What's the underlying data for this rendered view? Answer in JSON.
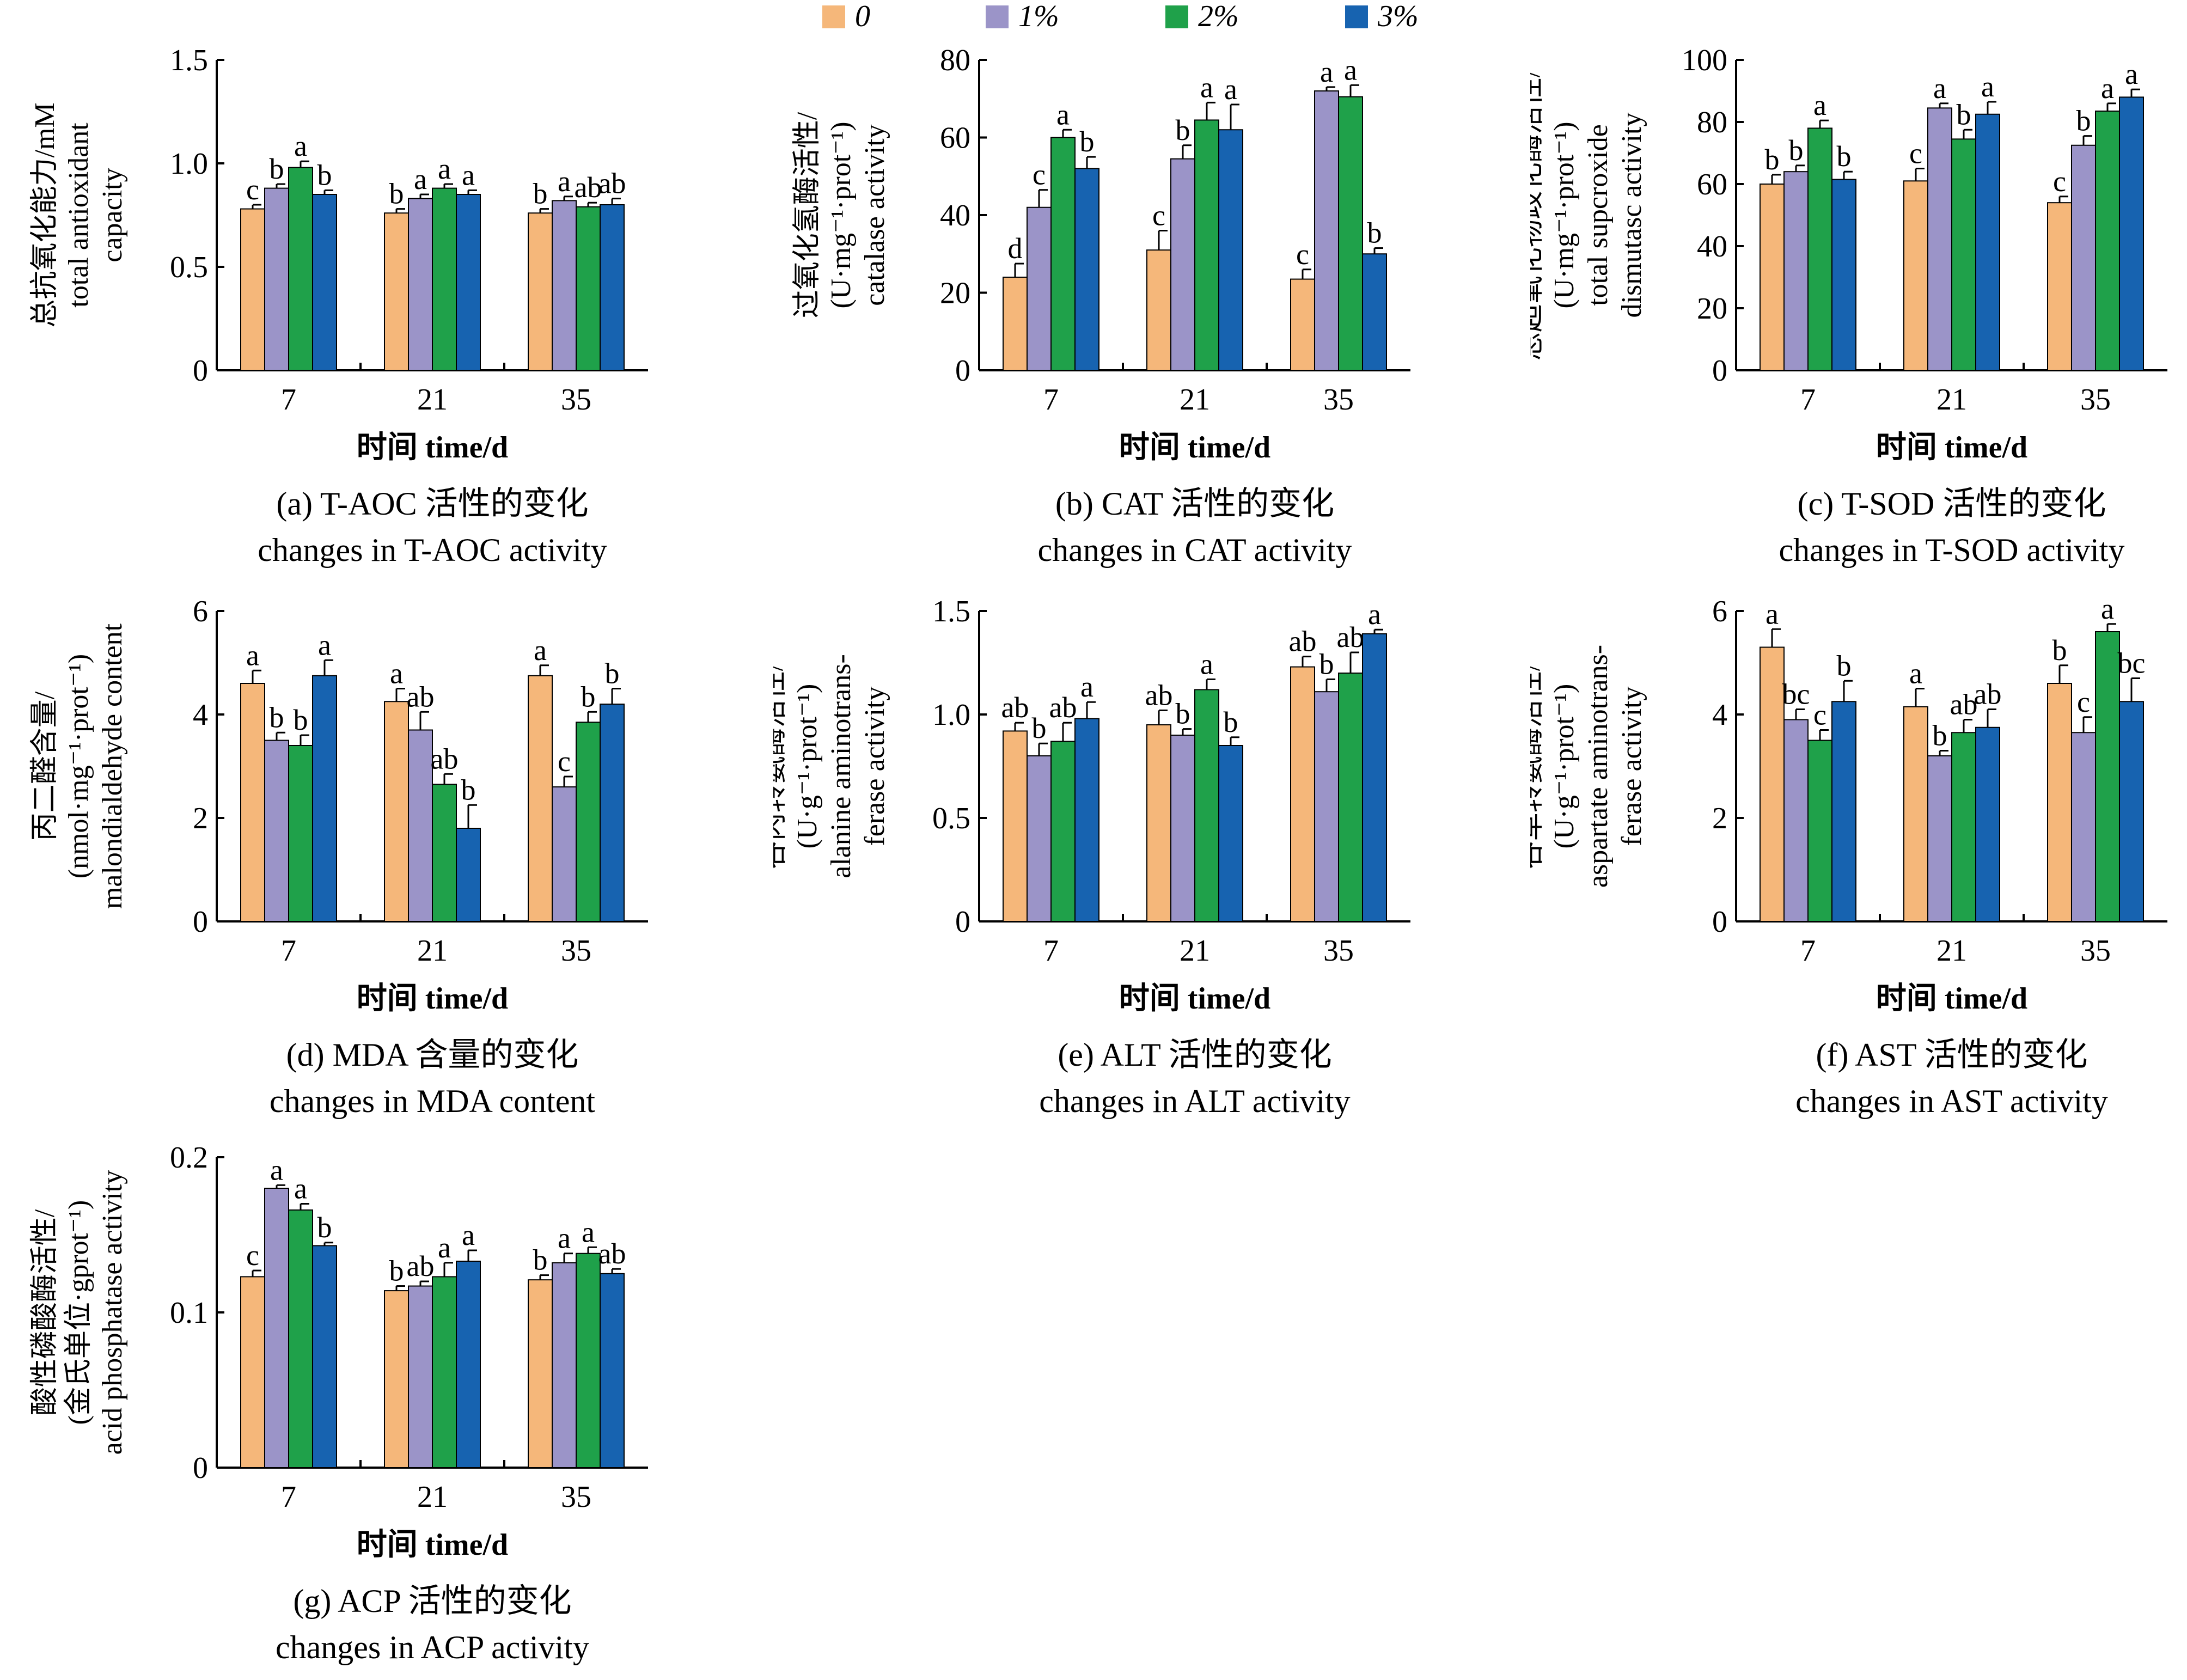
{
  "legend": {
    "entries": [
      {
        "label": "0",
        "color": "#F5B77A"
      },
      {
        "label": "1%",
        "color": "#9B94C8"
      },
      {
        "label": "2%",
        "color": "#1FA14A"
      },
      {
        "label": "3%",
        "color": "#1763B0"
      }
    ]
  },
  "chart_data": [
    {
      "type": "bar",
      "categories": [
        "7",
        "21",
        "35"
      ],
      "xlabel": "时间 time/d",
      "ylabel_lines": [
        "总抗氧化能力/mM",
        "total antioxidant",
        "capacity"
      ],
      "ylim": [
        0,
        1.5
      ],
      "yticks": [
        "0",
        "0.5",
        "1.0",
        "1.5"
      ],
      "caption_line1": "(a) T-AOC 活性的变化",
      "caption_line2": "changes in T-AOC activity",
      "series": [
        {
          "name": "0",
          "values": [
            0.78,
            0.76,
            0.76
          ],
          "errors": [
            0.02,
            0.02,
            0.02
          ],
          "letters": [
            "c",
            "b",
            "b"
          ]
        },
        {
          "name": "1%",
          "values": [
            0.88,
            0.83,
            0.82
          ],
          "errors": [
            0.02,
            0.02,
            0.02
          ],
          "letters": [
            "b",
            "a",
            "a"
          ]
        },
        {
          "name": "2%",
          "values": [
            0.98,
            0.88,
            0.79
          ],
          "errors": [
            0.03,
            0.02,
            0.02
          ],
          "letters": [
            "a",
            "a",
            "ab"
          ]
        },
        {
          "name": "3%",
          "values": [
            0.85,
            0.85,
            0.8
          ],
          "errors": [
            0.02,
            0.02,
            0.03
          ],
          "letters": [
            "b",
            "a",
            "ab"
          ]
        }
      ]
    },
    {
      "type": "bar",
      "categories": [
        "7",
        "21",
        "35"
      ],
      "xlabel": "时间 time/d",
      "ylabel_lines": [
        "过氧化氢酶活性/",
        "(U·mg⁻¹·prot⁻¹)",
        "catalase activity"
      ],
      "ylim": [
        0,
        80
      ],
      "yticks": [
        "0",
        "20",
        "40",
        "60",
        "80"
      ],
      "caption_line1": "(b) CAT 活性的变化",
      "caption_line2": "changes in CAT activity",
      "series": [
        {
          "name": "0",
          "values": [
            24,
            31,
            23.5
          ],
          "errors": [
            3.5,
            5,
            2.5
          ],
          "letters": [
            "d",
            "c",
            "c"
          ]
        },
        {
          "name": "1%",
          "values": [
            42,
            54.5,
            72
          ],
          "errors": [
            4.5,
            3.5,
            1
          ],
          "letters": [
            "c",
            "b",
            "a"
          ]
        },
        {
          "name": "2%",
          "values": [
            60,
            64.5,
            70.5
          ],
          "errors": [
            2,
            4.5,
            3
          ],
          "letters": [
            "a",
            "a",
            "a"
          ]
        },
        {
          "name": "3%",
          "values": [
            52,
            62,
            30
          ],
          "errors": [
            3,
            6.5,
            1.5
          ],
          "letters": [
            "b",
            "a",
            "b"
          ]
        }
      ]
    },
    {
      "type": "bar",
      "categories": [
        "7",
        "21",
        "35"
      ],
      "xlabel": "时间 time/d",
      "ylabel_lines": [
        "总超氧化物歧化酶活性/",
        "(U·mg⁻¹·prot⁻¹)",
        "total supcroxide",
        "dismutasc activity"
      ],
      "ylim": [
        0,
        100
      ],
      "yticks": [
        "0",
        "20",
        "40",
        "60",
        "80",
        "100"
      ],
      "caption_line1": "(c) T-SOD 活性的变化",
      "caption_line2": "changes in T-SOD activity",
      "series": [
        {
          "name": "0",
          "values": [
            60,
            61,
            54
          ],
          "errors": [
            3,
            4,
            2
          ],
          "letters": [
            "b",
            "c",
            "c"
          ]
        },
        {
          "name": "1%",
          "values": [
            64,
            84.5,
            72.5
          ],
          "errors": [
            2,
            1.5,
            3
          ],
          "letters": [
            "b",
            "a",
            "b"
          ]
        },
        {
          "name": "2%",
          "values": [
            78,
            74.5,
            83.5
          ],
          "errors": [
            2.5,
            3,
            2.5
          ],
          "letters": [
            "a",
            "b",
            "a"
          ]
        },
        {
          "name": "3%",
          "values": [
            61.5,
            82.5,
            88
          ],
          "errors": [
            2.5,
            4,
            2.5
          ],
          "letters": [
            "b",
            "a",
            "a"
          ]
        }
      ]
    },
    {
      "type": "bar",
      "categories": [
        "7",
        "21",
        "35"
      ],
      "xlabel": "时间 time/d",
      "ylabel_lines": [
        "丙二醛含量/",
        "(nmol·mg⁻¹·prot⁻¹)",
        "malondialdehyde content"
      ],
      "ylim": [
        0,
        6
      ],
      "yticks": [
        "0",
        "2",
        "4",
        "6"
      ],
      "caption_line1": "(d) MDA 含量的变化",
      "caption_line2": "changes in MDA content",
      "series": [
        {
          "name": "0",
          "values": [
            4.6,
            4.25,
            4.75
          ],
          "errors": [
            0.25,
            0.25,
            0.2
          ],
          "letters": [
            "a",
            "a",
            "a"
          ]
        },
        {
          "name": "1%",
          "values": [
            3.5,
            3.7,
            2.6
          ],
          "errors": [
            0.15,
            0.35,
            0.2
          ],
          "letters": [
            "b",
            "ab",
            "c"
          ]
        },
        {
          "name": "2%",
          "values": [
            3.4,
            2.65,
            3.85
          ],
          "errors": [
            0.2,
            0.2,
            0.2
          ],
          "letters": [
            "b",
            "ab",
            "b"
          ]
        },
        {
          "name": "3%",
          "values": [
            4.75,
            1.8,
            4.2
          ],
          "errors": [
            0.3,
            0.45,
            0.3
          ],
          "letters": [
            "a",
            "b",
            "b"
          ]
        }
      ]
    },
    {
      "type": "bar",
      "categories": [
        "7",
        "21",
        "35"
      ],
      "xlabel": "时间 time/d",
      "ylabel_lines": [
        "谷丙转氨酶活性/",
        "(U·g⁻¹·prot⁻¹)",
        "alanine aminotrans-",
        "ferase activity"
      ],
      "ylim": [
        0,
        1.5
      ],
      "yticks": [
        "0",
        "0.5",
        "1.0",
        "1.5"
      ],
      "caption_line1": "(e) ALT 活性的变化",
      "caption_line2": "changes in ALT activity",
      "series": [
        {
          "name": "0",
          "values": [
            0.92,
            0.95,
            1.23
          ],
          "errors": [
            0.04,
            0.07,
            0.05
          ],
          "letters": [
            "ab",
            "ab",
            "ab"
          ]
        },
        {
          "name": "1%",
          "values": [
            0.8,
            0.9,
            1.11
          ],
          "errors": [
            0.06,
            0.03,
            0.06
          ],
          "letters": [
            "b",
            "b",
            "b"
          ]
        },
        {
          "name": "2%",
          "values": [
            0.87,
            1.12,
            1.2
          ],
          "errors": [
            0.09,
            0.05,
            0.1
          ],
          "letters": [
            "ab",
            "a",
            "ab"
          ]
        },
        {
          "name": "3%",
          "values": [
            0.98,
            0.85,
            1.39
          ],
          "errors": [
            0.08,
            0.04,
            0.02
          ],
          "letters": [
            "a",
            "b",
            "a"
          ]
        }
      ]
    },
    {
      "type": "bar",
      "categories": [
        "7",
        "21",
        "35"
      ],
      "xlabel": "时间 time/d",
      "ylabel_lines": [
        "谷草转氨酶活性/",
        "(U·g⁻¹·prot⁻¹)",
        "aspartate aminotrans-",
        "ferase activity"
      ],
      "ylim": [
        0,
        6
      ],
      "yticks": [
        "0",
        "2",
        "4",
        "6"
      ],
      "caption_line1": "(f) AST 活性的变化",
      "caption_line2": "changes in AST activity",
      "series": [
        {
          "name": "0",
          "values": [
            5.3,
            4.15,
            4.6
          ],
          "errors": [
            0.35,
            0.35,
            0.35
          ],
          "letters": [
            "a",
            "a",
            "b"
          ]
        },
        {
          "name": "1%",
          "values": [
            3.9,
            3.2,
            3.65
          ],
          "errors": [
            0.2,
            0.1,
            0.3
          ],
          "letters": [
            "bc",
            "b",
            "c"
          ]
        },
        {
          "name": "2%",
          "values": [
            3.5,
            3.65,
            5.6
          ],
          "errors": [
            0.2,
            0.25,
            0.15
          ],
          "letters": [
            "c",
            "ab",
            "a"
          ]
        },
        {
          "name": "3%",
          "values": [
            4.25,
            3.75,
            4.25
          ],
          "errors": [
            0.4,
            0.35,
            0.45
          ],
          "letters": [
            "b",
            "ab",
            "bc"
          ]
        }
      ]
    },
    {
      "type": "bar",
      "categories": [
        "7",
        "21",
        "35"
      ],
      "xlabel": "时间 time/d",
      "ylabel_lines": [
        "酸性磷酸酶活性/",
        "(金氏单位·gprot⁻¹)",
        "acid phosphatase activity"
      ],
      "ylim": [
        0,
        0.2
      ],
      "yticks": [
        "0",
        "0.1",
        "0.2"
      ],
      "caption_line1": "(g) ACP 活性的变化",
      "caption_line2": "changes in ACP activity",
      "series": [
        {
          "name": "0",
          "values": [
            0.123,
            0.114,
            0.121
          ],
          "errors": [
            0.004,
            0.003,
            0.003
          ],
          "letters": [
            "c",
            "b",
            "b"
          ]
        },
        {
          "name": "1%",
          "values": [
            0.18,
            0.117,
            0.132
          ],
          "errors": [
            0.002,
            0.003,
            0.006
          ],
          "letters": [
            "a",
            "ab",
            "a"
          ]
        },
        {
          "name": "2%",
          "values": [
            0.166,
            0.123,
            0.138
          ],
          "errors": [
            0.004,
            0.009,
            0.004
          ],
          "letters": [
            "a",
            "a",
            "a"
          ]
        },
        {
          "name": "3%",
          "values": [
            0.143,
            0.133,
            0.125
          ],
          "errors": [
            0.002,
            0.007,
            0.003
          ],
          "letters": [
            "b",
            "a",
            "ab"
          ]
        }
      ]
    }
  ]
}
